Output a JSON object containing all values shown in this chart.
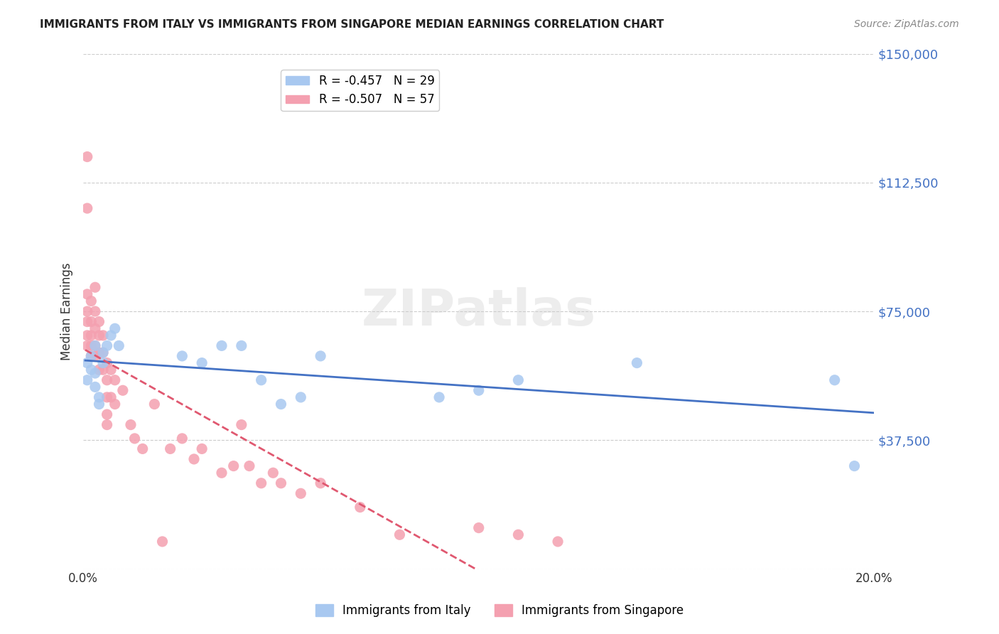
{
  "title": "IMMIGRANTS FROM ITALY VS IMMIGRANTS FROM SINGAPORE MEDIAN EARNINGS CORRELATION CHART",
  "source": "Source: ZipAtlas.com",
  "xlabel_label": "",
  "ylabel_label": "Median Earnings",
  "xlim": [
    0.0,
    0.2
  ],
  "ylim": [
    0,
    150000
  ],
  "yticks": [
    0,
    37500,
    75000,
    112500,
    150000
  ],
  "ytick_labels": [
    "",
    "$37,500",
    "$75,000",
    "$112,500",
    "$150,000"
  ],
  "xticks": [
    0.0,
    0.05,
    0.1,
    0.15,
    0.2
  ],
  "xtick_labels": [
    "0.0%",
    "",
    "",
    "",
    "20.0%"
  ],
  "legend_entries": [
    {
      "label": "R = -0.457   N = 29",
      "color": "#a8c8f0"
    },
    {
      "label": "R = -0.507   N = 57",
      "color": "#f4a0b0"
    }
  ],
  "italy_color": "#a8c8f0",
  "italy_line_color": "#4472c4",
  "singapore_color": "#f4a0b0",
  "singapore_line_color": "#e05870",
  "watermark": "ZIPatlas",
  "italy_x": [
    0.001,
    0.001,
    0.002,
    0.002,
    0.003,
    0.003,
    0.003,
    0.004,
    0.004,
    0.005,
    0.005,
    0.006,
    0.007,
    0.008,
    0.009,
    0.025,
    0.03,
    0.035,
    0.04,
    0.045,
    0.05,
    0.055,
    0.06,
    0.09,
    0.1,
    0.11,
    0.14,
    0.19,
    0.195
  ],
  "italy_y": [
    60000,
    55000,
    62000,
    58000,
    65000,
    57000,
    53000,
    50000,
    48000,
    63000,
    60000,
    65000,
    68000,
    70000,
    65000,
    62000,
    60000,
    65000,
    65000,
    55000,
    48000,
    50000,
    62000,
    50000,
    52000,
    55000,
    60000,
    55000,
    30000
  ],
  "italy_sizes": [
    60,
    60,
    60,
    60,
    60,
    60,
    60,
    60,
    60,
    60,
    60,
    150,
    60,
    60,
    60,
    60,
    60,
    60,
    60,
    60,
    50,
    60,
    80000,
    60,
    60,
    60,
    60,
    60,
    60
  ],
  "singapore_x": [
    0.001,
    0.001,
    0.001,
    0.001,
    0.001,
    0.001,
    0.001,
    0.002,
    0.002,
    0.002,
    0.002,
    0.002,
    0.003,
    0.003,
    0.003,
    0.003,
    0.003,
    0.004,
    0.004,
    0.004,
    0.004,
    0.005,
    0.005,
    0.005,
    0.006,
    0.006,
    0.006,
    0.006,
    0.006,
    0.007,
    0.007,
    0.008,
    0.008,
    0.01,
    0.012,
    0.013,
    0.015,
    0.018,
    0.02,
    0.022,
    0.025,
    0.028,
    0.03,
    0.035,
    0.038,
    0.04,
    0.042,
    0.045,
    0.048,
    0.05,
    0.055,
    0.06,
    0.07,
    0.08,
    0.1,
    0.11,
    0.12
  ],
  "singapore_y": [
    120000,
    105000,
    80000,
    75000,
    72000,
    68000,
    65000,
    78000,
    72000,
    68000,
    65000,
    62000,
    82000,
    75000,
    70000,
    65000,
    62000,
    72000,
    68000,
    63000,
    58000,
    68000,
    63000,
    58000,
    60000,
    55000,
    50000,
    45000,
    42000,
    58000,
    50000,
    55000,
    48000,
    52000,
    42000,
    38000,
    35000,
    48000,
    8000,
    35000,
    38000,
    32000,
    35000,
    28000,
    30000,
    42000,
    30000,
    25000,
    28000,
    25000,
    22000,
    25000,
    18000,
    10000,
    12000,
    10000,
    8000
  ]
}
